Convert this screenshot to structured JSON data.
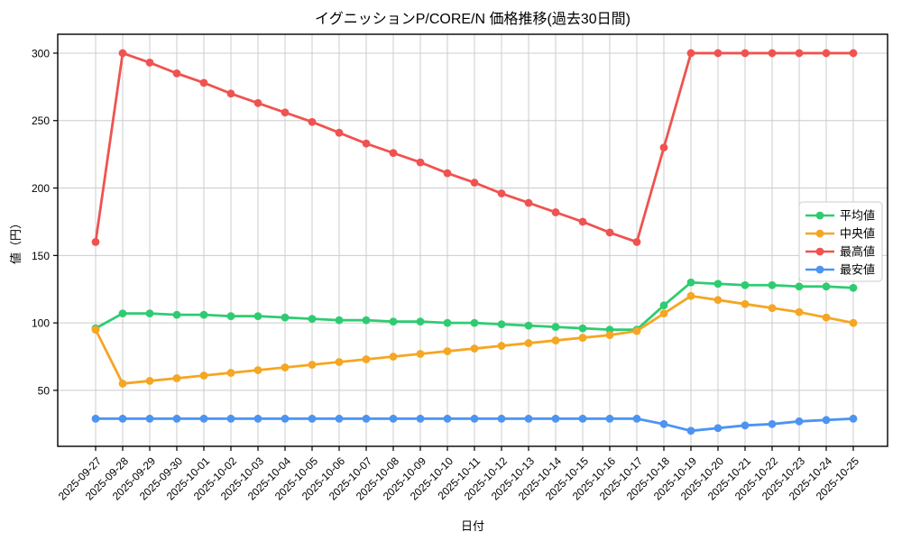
{
  "chart_data": {
    "type": "line",
    "title": "イグニッションP/CORE/N 価格推移(過去30日間)",
    "xlabel": "日付",
    "ylabel": "値（円）",
    "grid": true,
    "legend_position": "right-middle-inside",
    "ylim": [
      8.5,
      314
    ],
    "y_ticks": [
      50,
      100,
      150,
      200,
      250,
      300
    ],
    "categories": [
      "2025-09-27",
      "2025-09-28",
      "2025-09-29",
      "2025-09-30",
      "2025-10-01",
      "2025-10-02",
      "2025-10-03",
      "2025-10-04",
      "2025-10-05",
      "2025-10-06",
      "2025-10-07",
      "2025-10-08",
      "2025-10-09",
      "2025-10-10",
      "2025-10-11",
      "2025-10-12",
      "2025-10-13",
      "2025-10-14",
      "2025-10-15",
      "2025-10-16",
      "2025-10-17",
      "2025-10-18",
      "2025-10-19",
      "2025-10-20",
      "2025-10-21",
      "2025-10-22",
      "2025-10-23",
      "2025-10-24",
      "2025-10-25"
    ],
    "series": [
      {
        "name": "平均値",
        "color": "#2ecc71",
        "values": [
          96,
          107,
          107,
          106,
          106,
          105,
          105,
          104,
          103,
          102,
          102,
          101,
          101,
          100,
          100,
          99,
          98,
          97,
          96,
          95,
          95,
          113,
          130,
          129,
          128,
          128,
          127,
          127,
          126
        ]
      },
      {
        "name": "中央値",
        "color": "#f5a623",
        "values": [
          95,
          55,
          57,
          59,
          61,
          63,
          65,
          67,
          69,
          71,
          73,
          75,
          77,
          79,
          81,
          83,
          85,
          87,
          89,
          91,
          94,
          107,
          120,
          117,
          114,
          111,
          108,
          104,
          100
        ]
      },
      {
        "name": "最高値",
        "color": "#ef5350",
        "values": [
          160,
          300,
          293,
          285,
          278,
          270,
          263,
          256,
          249,
          241,
          233,
          226,
          219,
          211,
          204,
          196,
          189,
          182,
          175,
          167,
          160,
          230,
          300,
          300,
          300,
          300,
          300,
          300,
          300
        ]
      },
      {
        "name": "最安値",
        "color": "#4d94f2",
        "values": [
          29,
          29,
          29,
          29,
          29,
          29,
          29,
          29,
          29,
          29,
          29,
          29,
          29,
          29,
          29,
          29,
          29,
          29,
          29,
          29,
          29,
          25,
          20,
          22,
          24,
          25,
          27,
          28,
          29
        ]
      }
    ],
    "colors": {
      "grid": "#cccccc",
      "spine": "#000000",
      "background": "#ffffff",
      "legend_border": "#cccccc"
    }
  }
}
